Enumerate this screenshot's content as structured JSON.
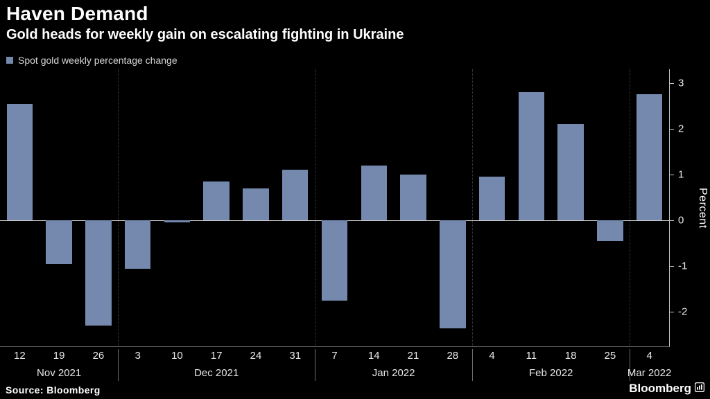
{
  "header": {
    "title": "Haven Demand",
    "subtitle": "Gold heads for weekly gain on escalating fighting in Ukraine"
  },
  "legend": {
    "label": "Spot gold weekly percentage change",
    "color": "#7589ae"
  },
  "chart_data": {
    "type": "bar",
    "title": "Haven Demand",
    "subtitle": "Gold heads for weekly gain on escalating fighting in Ukraine",
    "series_name": "Spot gold weekly percentage change",
    "xlabel": "",
    "ylabel": "Percent",
    "ylim": [
      -2.75,
      3.3
    ],
    "yticks": [
      3,
      2,
      1,
      0,
      -1,
      -2
    ],
    "grid": "dotted vertical lines at month boundaries",
    "legend_position": "top-left",
    "bar_color": "#7589ae",
    "categories": [
      "12",
      "19",
      "26",
      "3",
      "10",
      "17",
      "24",
      "31",
      "7",
      "14",
      "21",
      "28",
      "4",
      "11",
      "18",
      "25",
      "4"
    ],
    "values": [
      2.55,
      -0.95,
      -2.3,
      -1.05,
      -0.05,
      0.85,
      0.7,
      1.1,
      -1.75,
      1.2,
      1.0,
      -2.35,
      0.95,
      2.8,
      2.1,
      -0.45,
      2.75
    ],
    "months": [
      {
        "label": "Nov 2021",
        "span": 3
      },
      {
        "label": "Dec 2021",
        "span": 5
      },
      {
        "label": "Jan 2022",
        "span": 4
      },
      {
        "label": "Feb 2022",
        "span": 4
      },
      {
        "label": "Mar 2022",
        "span": 1
      }
    ]
  },
  "footer": {
    "source": "Source: Bloomberg",
    "brand": "Bloomberg"
  }
}
